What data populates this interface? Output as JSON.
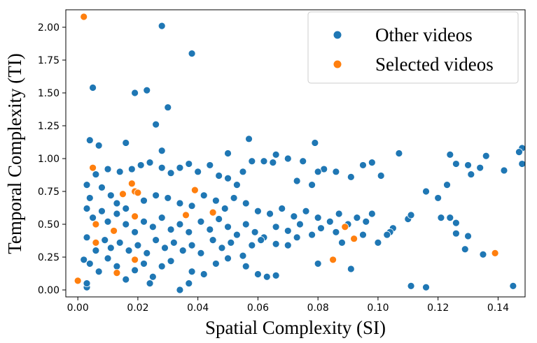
{
  "chart_data": {
    "type": "scatter",
    "x_label": "Spatial Complexity (SI)",
    "y_label": "Temporal Complexity (TI)",
    "xlim": [
      -0.004,
      0.149
    ],
    "ylim": [
      -0.053,
      2.133
    ],
    "xticks": [
      {
        "value": 0,
        "label": "0.00"
      },
      {
        "value": 0.02,
        "label": "0.02"
      },
      {
        "value": 0.04,
        "label": "0.04"
      },
      {
        "value": 0.06,
        "label": "0.06"
      },
      {
        "value": 0.08,
        "label": "0.08"
      },
      {
        "value": 0.1,
        "label": "0.10"
      },
      {
        "value": 0.12,
        "label": "0.12"
      },
      {
        "value": 0.14,
        "label": "0.14"
      }
    ],
    "yticks": [
      {
        "value": 0,
        "label": "0.00"
      },
      {
        "value": 0.25,
        "label": "0.25"
      },
      {
        "value": 0.5,
        "label": "0.50"
      },
      {
        "value": 0.75,
        "label": "0.75"
      },
      {
        "value": 1,
        "label": "1.00"
      },
      {
        "value": 1.25,
        "label": "1.25"
      },
      {
        "value": 1.5,
        "label": "1.50"
      },
      {
        "value": 1.75,
        "label": "1.75"
      },
      {
        "value": 2,
        "label": "2.00"
      }
    ],
    "legend": "upper right",
    "series": [
      {
        "name": "Other videos",
        "color": "#1f77b4",
        "x": [
          0.028,
          0.038,
          0.005,
          0.019,
          0.023,
          0.03,
          0.026,
          0.004,
          0.016,
          0.057,
          0.079,
          0.007,
          0.028,
          0.05,
          0.107,
          0.148,
          0.147,
          0.148,
          0.136,
          0.124,
          0.142,
          0.13,
          0.134,
          0.131,
          0.126,
          0.123,
          0.12,
          0.116,
          0.121,
          0.124,
          0.126,
          0.13,
          0.126,
          0.129,
          0.135,
          0.145,
          0.116,
          0.111,
          0.11,
          0.111,
          0.105,
          0.104,
          0.101,
          0.103,
          0.1,
          0.098,
          0.095,
          0.091,
          0.086,
          0.082,
          0.08,
          0.078,
          0.075,
          0.073,
          0.07,
          0.066,
          0.065,
          0.062,
          0.058,
          0.055,
          0.053,
          0.05,
          0.047,
          0.044,
          0.04,
          0.037,
          0.034,
          0.031,
          0.028,
          0.024,
          0.021,
          0.018,
          0.014,
          0.01,
          0.006,
          0.003,
          0.004,
          0.008,
          0.011,
          0.013,
          0.016,
          0.022,
          0.026,
          0.03,
          0.034,
          0.038,
          0.042,
          0.046,
          0.049,
          0.052,
          0.056,
          0.06,
          0.064,
          0.068,
          0.072,
          0.076,
          0.08,
          0.084,
          0.087,
          0.09,
          0.093,
          0.096,
          0.098,
          0.003,
          0.005,
          0.008,
          0.01,
          0.013,
          0.016,
          0.019,
          0.022,
          0.025,
          0.028,
          0.031,
          0.034,
          0.037,
          0.041,
          0.044,
          0.047,
          0.05,
          0.053,
          0.056,
          0.059,
          0.062,
          0.066,
          0.07,
          0.074,
          0.078,
          0.081,
          0.086,
          0.088,
          0.095,
          0.003,
          0.006,
          0.009,
          0.011,
          0.014,
          0.017,
          0.02,
          0.023,
          0.026,
          0.029,
          0.032,
          0.035,
          0.038,
          0.041,
          0.045,
          0.048,
          0.051,
          0.055,
          0.058,
          0.061,
          0.066,
          0.07,
          0.073,
          0.004,
          0.007,
          0.01,
          0.013,
          0.016,
          0.019,
          0.022,
          0.025,
          0.028,
          0.031,
          0.034,
          0.037,
          0.038,
          0.042,
          0.046,
          0.05,
          0.056,
          0.06,
          0.063,
          0.066,
          0.08,
          0.091,
          0.002,
          0.003,
          0.003,
          0.024
        ],
        "values": [
          2.01,
          1.8,
          1.54,
          1.5,
          1.52,
          1.39,
          1.26,
          1.14,
          1.12,
          1.15,
          1.12,
          1.1,
          1.06,
          1.04,
          1.04,
          1.08,
          1.05,
          0.96,
          1.02,
          1.03,
          0.91,
          0.95,
          0.93,
          0.88,
          0.96,
          0.8,
          0.7,
          0.75,
          0.55,
          0.55,
          0.51,
          0.41,
          0.43,
          0.31,
          0.27,
          0.03,
          0.02,
          0.03,
          0.54,
          0.57,
          0.47,
          0.44,
          0.87,
          0.42,
          0.36,
          0.97,
          0.95,
          0.86,
          0.9,
          0.92,
          0.9,
          0.8,
          0.98,
          0.83,
          1.0,
          1.03,
          0.97,
          0.98,
          0.98,
          0.9,
          0.8,
          0.85,
          0.87,
          0.95,
          0.9,
          0.96,
          0.93,
          0.89,
          0.93,
          0.97,
          0.95,
          0.92,
          0.9,
          0.92,
          0.88,
          0.8,
          0.7,
          0.78,
          0.72,
          0.66,
          0.62,
          0.68,
          0.72,
          0.7,
          0.66,
          0.64,
          0.72,
          0.68,
          0.62,
          0.7,
          0.66,
          0.6,
          0.58,
          0.62,
          0.56,
          0.6,
          0.55,
          0.52,
          0.58,
          0.5,
          0.55,
          0.52,
          0.58,
          0.62,
          0.55,
          0.6,
          0.52,
          0.58,
          0.5,
          0.44,
          0.52,
          0.48,
          0.55,
          0.46,
          0.5,
          0.44,
          0.52,
          0.46,
          0.54,
          0.48,
          0.42,
          0.5,
          0.44,
          0.4,
          0.48,
          0.45,
          0.5,
          0.42,
          0.47,
          0.44,
          0.36,
          0.42,
          0.4,
          0.3,
          0.38,
          0.32,
          0.36,
          0.3,
          0.34,
          0.28,
          0.38,
          0.32,
          0.36,
          0.3,
          0.34,
          0.28,
          0.38,
          0.32,
          0.36,
          0.26,
          0.34,
          0.38,
          0.35,
          0.34,
          0.4,
          0.2,
          0.14,
          0.24,
          0.18,
          0.08,
          0.15,
          0.2,
          0.1,
          0.18,
          0.22,
          0.0,
          0.05,
          0.14,
          0.12,
          0.2,
          0.24,
          0.18,
          0.12,
          0.1,
          0.11,
          0.2,
          0.16,
          0.23,
          0.02,
          0.05,
          0.05
        ]
      },
      {
        "name": "Selected videos",
        "color": "#ff7f0e",
        "x": [
          0.002,
          0.005,
          0.0,
          0.006,
          0.006,
          0.012,
          0.013,
          0.015,
          0.018,
          0.019,
          0.019,
          0.019,
          0.02,
          0.036,
          0.039,
          0.045,
          0.085,
          0.089,
          0.092,
          0.139
        ],
        "values": [
          2.08,
          0.93,
          0.07,
          0.5,
          0.36,
          0.45,
          0.13,
          0.73,
          0.81,
          0.75,
          0.56,
          0.23,
          0.74,
          0.57,
          0.76,
          0.59,
          0.23,
          0.48,
          0.39,
          0.28
        ]
      }
    ]
  }
}
